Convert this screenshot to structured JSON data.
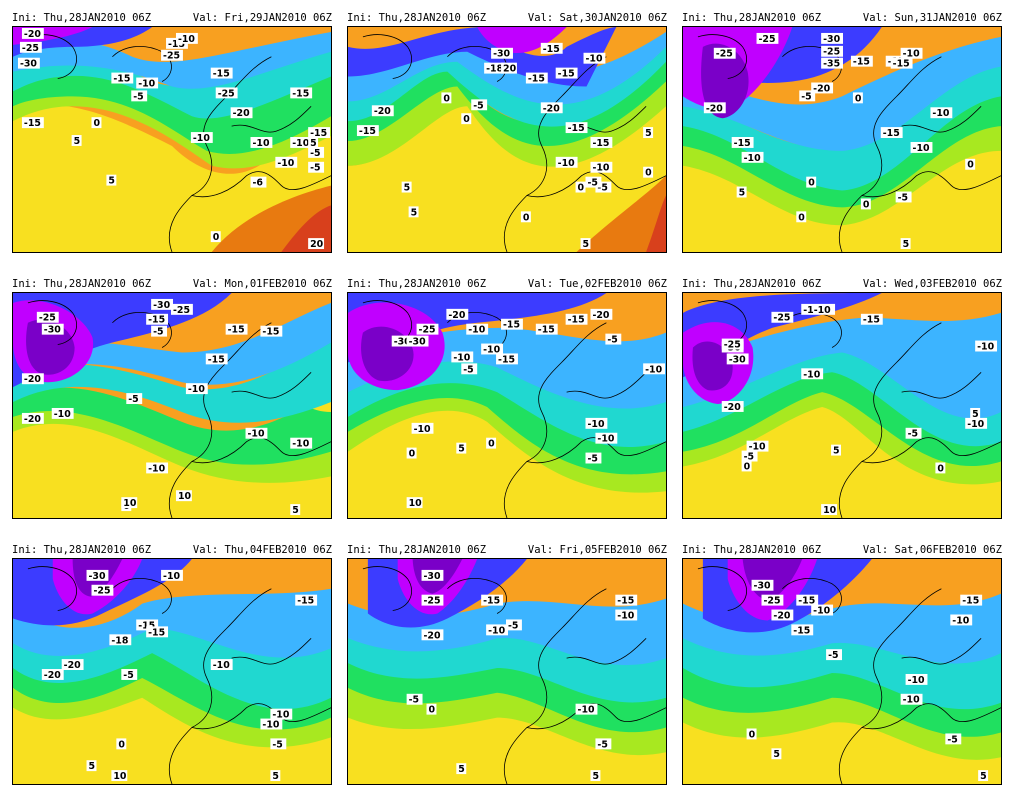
{
  "figure": {
    "palette": {
      "deep_purple": "#7a00c8",
      "magenta": "#c000ff",
      "blue": "#3c3cff",
      "sky": "#3cb4ff",
      "cyan": "#20d8d0",
      "green": "#20e060",
      "yellow_green": "#a8e820",
      "yellow": "#f8e020",
      "orange": "#f8a020",
      "dark_orange": "#e87a10",
      "red": "#d8401c",
      "coastline": "#000000"
    },
    "panels": [
      {
        "ini": "Ini: Thu,28JAN2010 06Z",
        "val": "Val: Fri,29JAN2010 06Z",
        "labels": [
          "-20",
          "-25",
          "-30",
          "-15",
          "-25",
          "-10",
          "-15",
          "-10",
          "-5",
          "-10",
          "-15",
          "-25",
          "-20",
          "-15",
          "0",
          "-15",
          "5",
          "-10",
          "-10",
          "-5",
          "5",
          "-6",
          "0",
          "5",
          "20",
          "-15",
          "-5",
          "-10"
        ]
      },
      {
        "ini": "Ini: Thu,28JAN2010 06Z",
        "val": "Val: Sat,30JAN2010 06Z",
        "labels": [
          "-30",
          "-18",
          "20",
          "-15",
          "-15",
          "-15",
          "-10",
          "-20",
          "0",
          "-5",
          "-20",
          "-15",
          "0",
          "-15",
          "-10",
          "-15",
          "5",
          "-10",
          "-5",
          "5",
          "0",
          "0",
          "5",
          "5",
          "0",
          "-5"
        ]
      },
      {
        "ini": "Ini: Thu,28JAN2010 06Z",
        "val": "Val: Sun,31JAN2010 06Z",
        "labels": [
          "-25",
          "-30",
          "-25",
          "-35",
          "-15",
          "-15",
          "-10",
          "-25",
          "-20",
          "-15",
          "-20",
          "-5",
          "0",
          "-10",
          "-15",
          "-10",
          "-15",
          "-10",
          "0",
          "0",
          "5",
          "0",
          "-5",
          "0",
          "5"
        ]
      },
      {
        "ini": "Ini: Thu,28JAN2010 06Z",
        "val": "Val: Mon,01FEB2010 06Z",
        "labels": [
          "-25",
          "-30",
          "-30",
          "-25",
          "-15",
          "-15",
          "-5",
          "-20",
          "-15",
          "-15",
          "-10",
          "-20",
          "-10",
          "-5",
          "-10",
          "-10",
          "-10",
          "0",
          "10",
          "5",
          "10"
        ]
      },
      {
        "ini": "Ini: Thu,28JAN2010 06Z",
        "val": "Val: Tue,02FEB2010 06Z",
        "labels": [
          "-25",
          "-30",
          "-20",
          "-10",
          "-15",
          "-15",
          "-20",
          "-30",
          "-10",
          "-15",
          "-10",
          "-5",
          "-10",
          "-15",
          "-5",
          "-10",
          "-10",
          "0",
          "5",
          "0",
          "-5",
          "-10",
          "10"
        ]
      },
      {
        "ini": "Ini: Thu,28JAN2010 06Z",
        "val": "Val: Wed,03FEB2010 06Z",
        "labels": [
          "-25",
          "-30",
          "-1-10",
          "-15",
          "-25",
          "-30",
          "-10",
          "-10",
          "-20",
          "-10",
          "-5",
          "0",
          "5",
          "-10",
          "-5",
          "10",
          "0",
          "5"
        ]
      },
      {
        "ini": "Ini: Thu,28JAN2010 06Z",
        "val": "Val: Thu,04FEB2010 06Z",
        "labels": [
          "-30",
          "-25",
          "-15",
          "-15",
          "-18",
          "-20",
          "-10",
          "-15",
          "-10",
          "-20",
          "-5",
          "-10",
          "-10",
          "-5",
          "0",
          "5",
          "10",
          "5"
        ]
      },
      {
        "ini": "Ini: Thu,28JAN2010 06Z",
        "val": "Val: Fri,05FEB2010 06Z",
        "labels": [
          "-30",
          "-25",
          "-15",
          "-10",
          "-5",
          "-15",
          "-10",
          "-20",
          "-5",
          "0",
          "-10",
          "-5",
          "5",
          "5"
        ]
      },
      {
        "ini": "Ini: Thu,28JAN2010 06Z",
        "val": "Val: Sat,06FEB2010 06Z",
        "labels": [
          "-30",
          "-25",
          "-15",
          "-10",
          "-20",
          "-15",
          "-15",
          "-10",
          "-5",
          "-10",
          "-10",
          "0",
          "-5",
          "5",
          "5"
        ]
      }
    ]
  }
}
